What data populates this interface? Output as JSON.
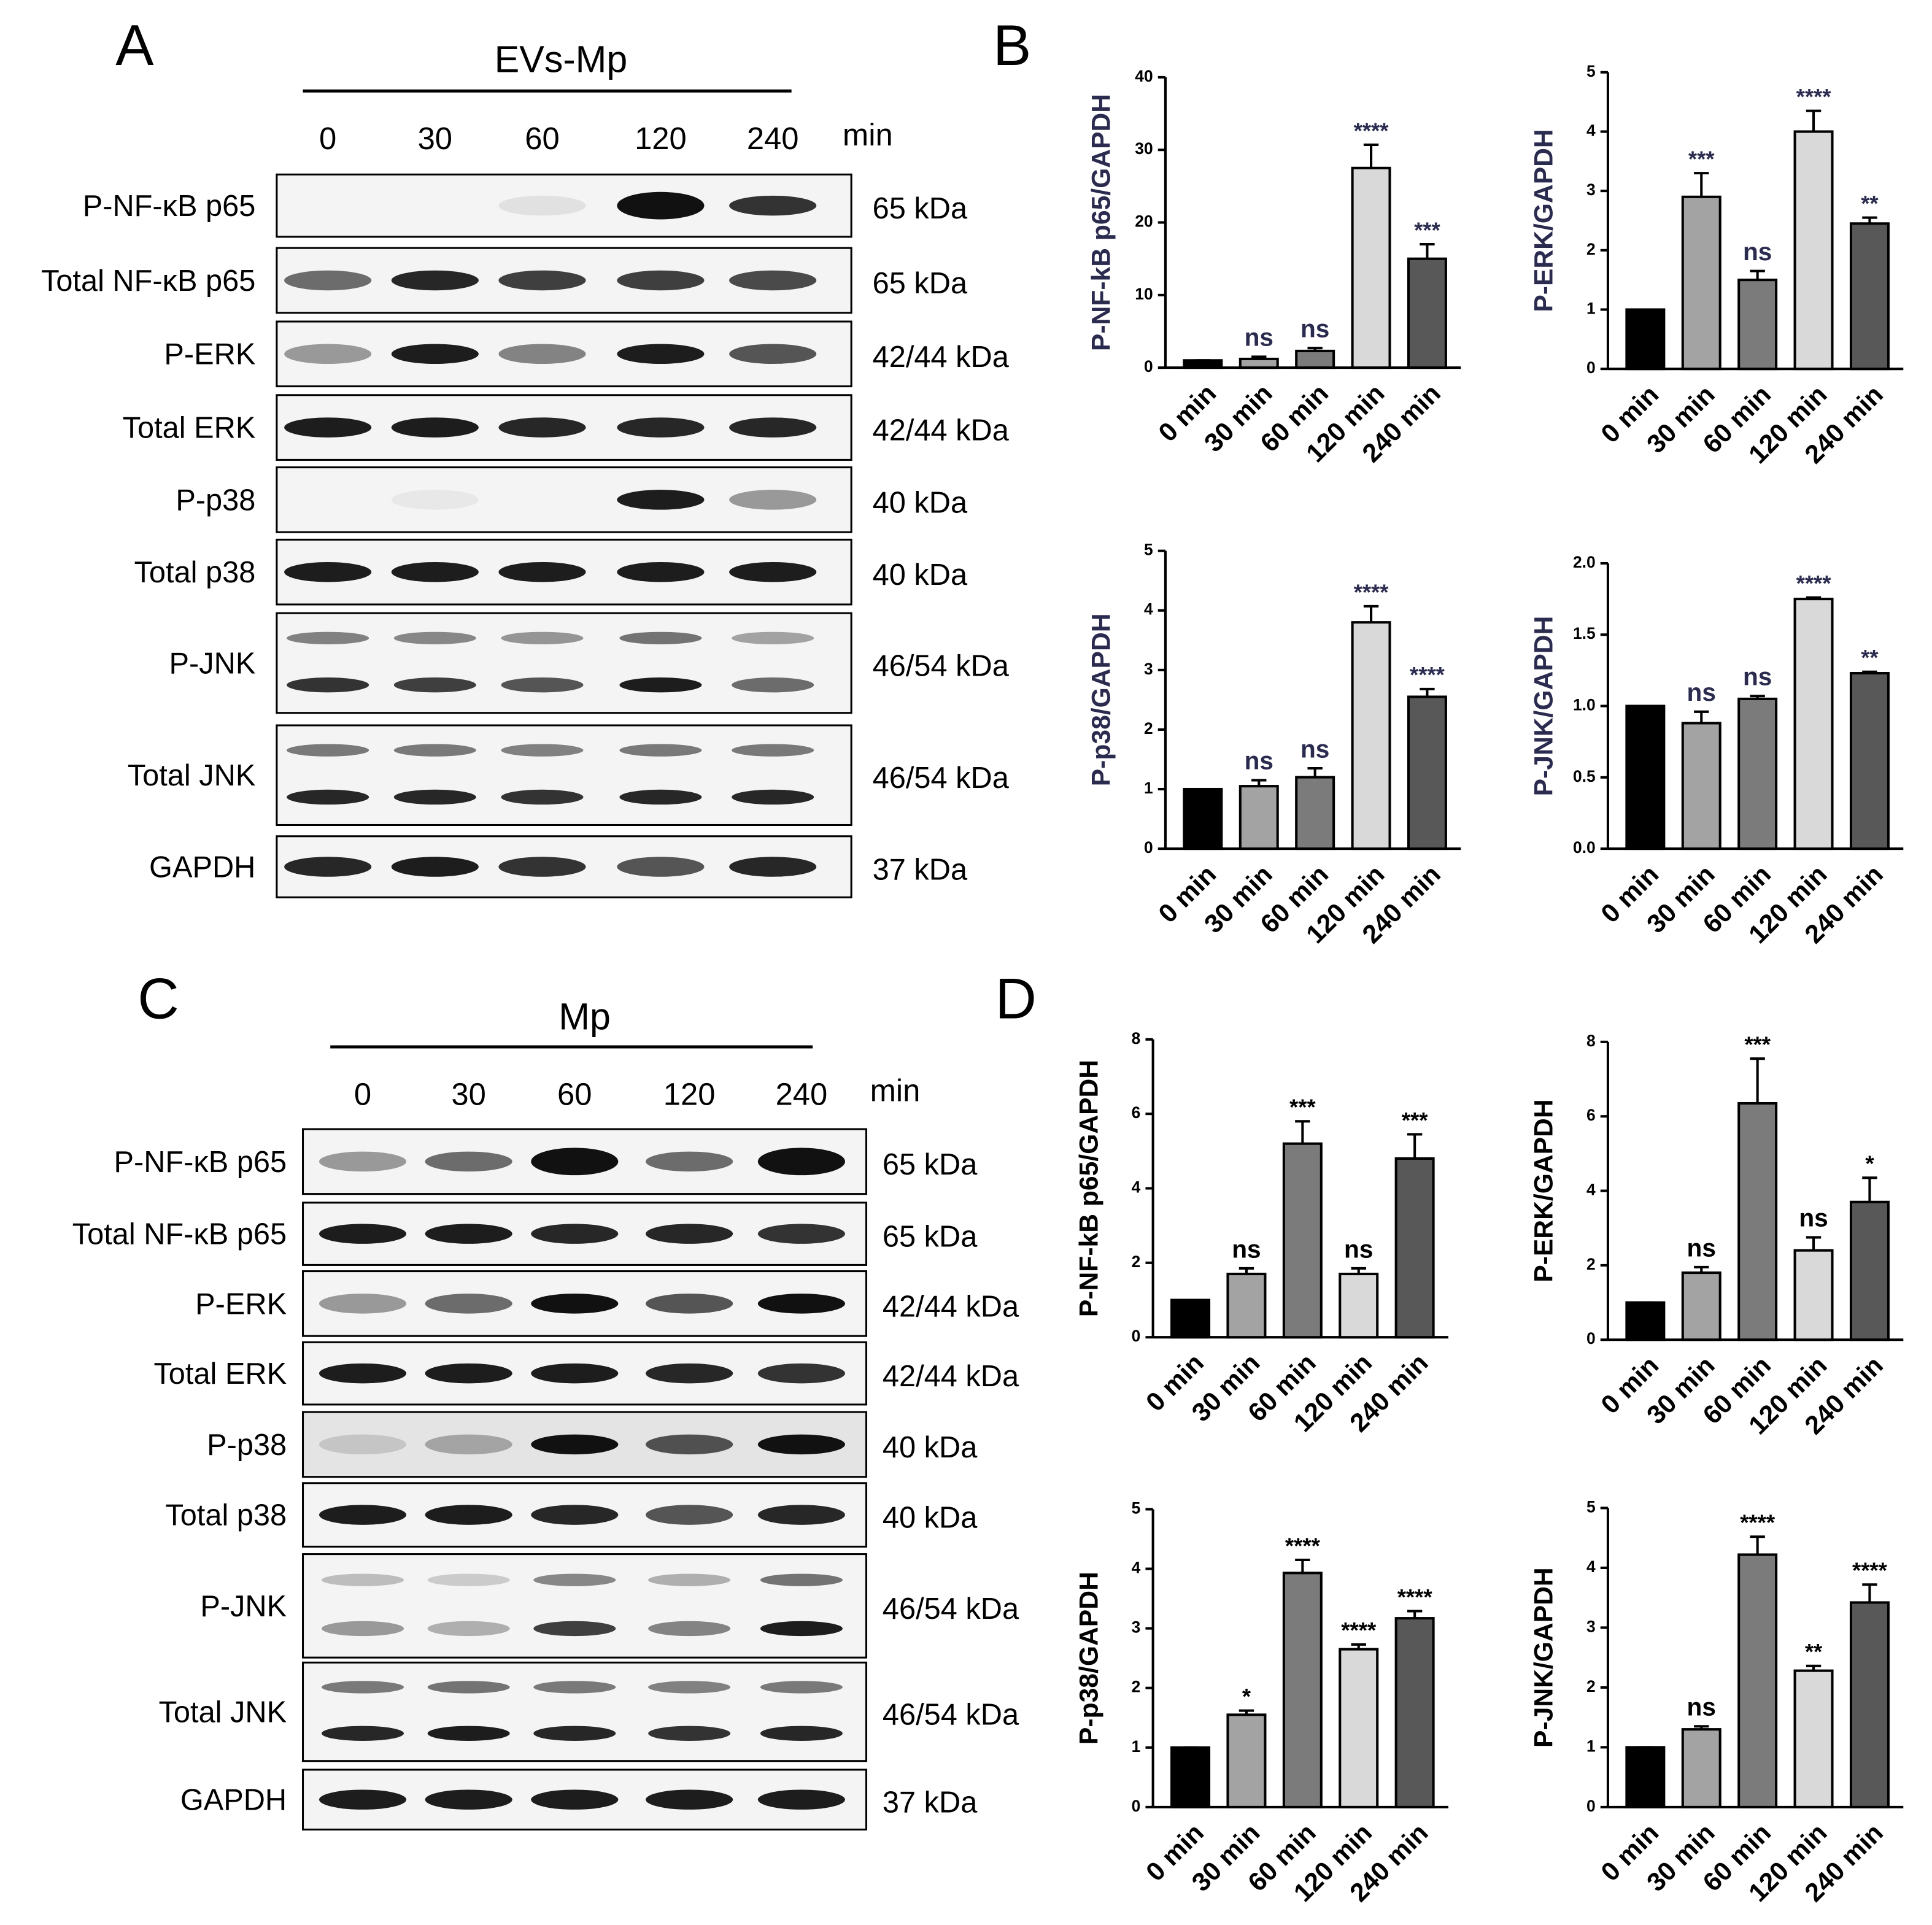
{
  "panel_letters": [
    "A",
    "B",
    "C",
    "D"
  ],
  "blots": [
    {
      "group": "EVs-Mp",
      "lanes": [
        "0",
        "30",
        "60",
        "120",
        "240"
      ],
      "unit": "min",
      "rows": [
        {
          "label": "P-NF-κB p65",
          "size": "65 kDa"
        },
        {
          "label": "Total NF-κB p65",
          "size": "65 kDa"
        },
        {
          "label": "P-ERK",
          "size": "42/44 kDa"
        },
        {
          "label": "Total ERK",
          "size": "42/44 kDa"
        },
        {
          "label": "P-p38",
          "size": "40 kDa"
        },
        {
          "label": "Total p38",
          "size": "40 kDa"
        },
        {
          "label": "P-JNK",
          "size": "46/54 kDa"
        },
        {
          "label": "Total JNK",
          "size": "46/54 kDa"
        },
        {
          "label": "GAPDH",
          "size": "37 kDa"
        }
      ]
    },
    {
      "group": "Mp",
      "lanes": [
        "0",
        "30",
        "60",
        "120",
        "240"
      ],
      "unit": "min",
      "rows": [
        {
          "label": "P-NF-κB p65",
          "size": "65 kDa"
        },
        {
          "label": "Total NF-κB p65",
          "size": "65 kDa"
        },
        {
          "label": "P-ERK",
          "size": "42/44 kDa"
        },
        {
          "label": "Total ERK",
          "size": "42/44 kDa"
        },
        {
          "label": "P-p38",
          "size": "40 kDa"
        },
        {
          "label": "Total p38",
          "size": "40 kDa"
        },
        {
          "label": "P-JNK",
          "size": "46/54 kDa"
        },
        {
          "label": "Total JNK",
          "size": "46/54 kDa"
        },
        {
          "label": "GAPDH",
          "size": "37 kDa"
        }
      ]
    }
  ],
  "chart_data": [
    {
      "type": "bar",
      "ylabel": "P-NF-kB p65/GAPDH",
      "text_color": "#2b2b4f",
      "categories": [
        "0 min",
        "30 min",
        "60 min",
        "120 min",
        "240 min"
      ],
      "colors": [
        "#000000",
        "#a3a3a3",
        "#7b7b7b",
        "#d9d9d9",
        "#585858"
      ],
      "values": [
        1,
        1.2,
        2.3,
        27.5,
        15
      ],
      "errors": [
        0,
        0.3,
        0.4,
        3.2,
        2
      ],
      "annotations": [
        null,
        "ns",
        "ns",
        "****",
        "***"
      ],
      "ylim": [
        0,
        40
      ],
      "yticks": [
        0,
        10,
        20,
        30,
        40
      ]
    },
    {
      "type": "bar",
      "ylabel": "P-ERK/GAPDH",
      "text_color": "#2b2b4f",
      "categories": [
        "0 min",
        "30 min",
        "60 min",
        "120 min",
        "240 min"
      ],
      "colors": [
        "#000000",
        "#a3a3a3",
        "#7b7b7b",
        "#d9d9d9",
        "#585858"
      ],
      "values": [
        1,
        2.9,
        1.5,
        4.0,
        2.45
      ],
      "errors": [
        0,
        0.4,
        0.15,
        0.35,
        0.1
      ],
      "annotations": [
        null,
        "***",
        "ns",
        "****",
        "**"
      ],
      "ylim": [
        0,
        5
      ],
      "yticks": [
        0,
        1,
        2,
        3,
        4,
        5
      ]
    },
    {
      "type": "bar",
      "ylabel": "P-p38/GAPDH",
      "text_color": "#2b2b4f",
      "categories": [
        "0 min",
        "30 min",
        "60 min",
        "120 min",
        "240 min"
      ],
      "colors": [
        "#000000",
        "#a3a3a3",
        "#7b7b7b",
        "#d9d9d9",
        "#585858"
      ],
      "values": [
        1,
        1.05,
        1.2,
        3.8,
        2.55
      ],
      "errors": [
        0,
        0.1,
        0.15,
        0.27,
        0.13
      ],
      "annotations": [
        null,
        "ns",
        "ns",
        "****",
        "****"
      ],
      "ylim": [
        0,
        5
      ],
      "yticks": [
        0,
        1,
        2,
        3,
        4,
        5
      ]
    },
    {
      "type": "bar",
      "ylabel": "P-JNK/GAPDH",
      "text_color": "#2b2b4f",
      "categories": [
        "0 min",
        "30 min",
        "60 min",
        "120 min",
        "240 min"
      ],
      "colors": [
        "#000000",
        "#a3a3a3",
        "#7b7b7b",
        "#d9d9d9",
        "#585858"
      ],
      "values": [
        1,
        0.88,
        1.05,
        1.75,
        1.23
      ],
      "errors": [
        0,
        0.08,
        0.02,
        0.01,
        0.01
      ],
      "annotations": [
        null,
        "ns",
        "ns",
        "****",
        "**"
      ],
      "ylim": [
        0,
        2
      ],
      "yticks": [
        {
          "value": 0,
          "label": "0.0"
        },
        {
          "value": 0.5,
          "label": "0.5"
        },
        {
          "value": 1,
          "label": "1.0"
        },
        {
          "value": 1.5,
          "label": "1.5"
        },
        {
          "value": 2,
          "label": "2.0"
        }
      ]
    },
    {
      "type": "bar",
      "ylabel": "P-NF-kB p65/GAPDH",
      "text_color": "#000000",
      "categories": [
        "0 min",
        "30 min",
        "60 min",
        "120 min",
        "240 min"
      ],
      "colors": [
        "#000000",
        "#a3a3a3",
        "#7b7b7b",
        "#d9d9d9",
        "#585858"
      ],
      "values": [
        1,
        1.7,
        5.2,
        1.7,
        4.8
      ],
      "errors": [
        0,
        0.15,
        0.6,
        0.15,
        0.65
      ],
      "annotations": [
        null,
        "ns",
        "***",
        "ns",
        "***"
      ],
      "ylim": [
        0,
        8
      ],
      "yticks": [
        0,
        2,
        4,
        6,
        8
      ]
    },
    {
      "type": "bar",
      "ylabel": "P-ERK/GAPDH",
      "text_color": "#000000",
      "categories": [
        "0 min",
        "30 min",
        "60 min",
        "120 min",
        "240 min"
      ],
      "colors": [
        "#000000",
        "#a3a3a3",
        "#7b7b7b",
        "#d9d9d9",
        "#585858"
      ],
      "values": [
        1,
        1.8,
        6.35,
        2.4,
        3.7
      ],
      "errors": [
        0,
        0.15,
        1.2,
        0.35,
        0.65
      ],
      "annotations": [
        null,
        "ns",
        "***",
        "ns",
        "*"
      ],
      "ylim": [
        0,
        8
      ],
      "yticks": [
        0,
        2,
        4,
        6,
        8
      ]
    },
    {
      "type": "bar",
      "ylabel": "P-p38/GAPDH",
      "text_color": "#000000",
      "categories": [
        "0 min",
        "30 min",
        "60 min",
        "120 min",
        "240 min"
      ],
      "colors": [
        "#000000",
        "#a3a3a3",
        "#7b7b7b",
        "#d9d9d9",
        "#585858"
      ],
      "values": [
        1,
        1.55,
        3.93,
        2.65,
        3.17
      ],
      "errors": [
        0,
        0.07,
        0.22,
        0.08,
        0.12
      ],
      "annotations": [
        null,
        "*",
        "****",
        "****",
        "****"
      ],
      "ylim": [
        0,
        5
      ],
      "yticks": [
        0,
        1,
        2,
        3,
        4,
        5
      ]
    },
    {
      "type": "bar",
      "ylabel": "P-JNK/GAPDH",
      "text_color": "#000000",
      "categories": [
        "0 min",
        "30 min",
        "60 min",
        "120 min",
        "240 min"
      ],
      "colors": [
        "#000000",
        "#a3a3a3",
        "#7b7b7b",
        "#d9d9d9",
        "#585858"
      ],
      "values": [
        1,
        1.3,
        4.22,
        2.28,
        3.42
      ],
      "errors": [
        0,
        0.05,
        0.3,
        0.08,
        0.3
      ],
      "annotations": [
        null,
        "ns",
        "****",
        "**",
        "****"
      ],
      "ylim": [
        0,
        5
      ],
      "yticks": [
        0,
        1,
        2,
        3,
        4,
        5
      ]
    }
  ]
}
